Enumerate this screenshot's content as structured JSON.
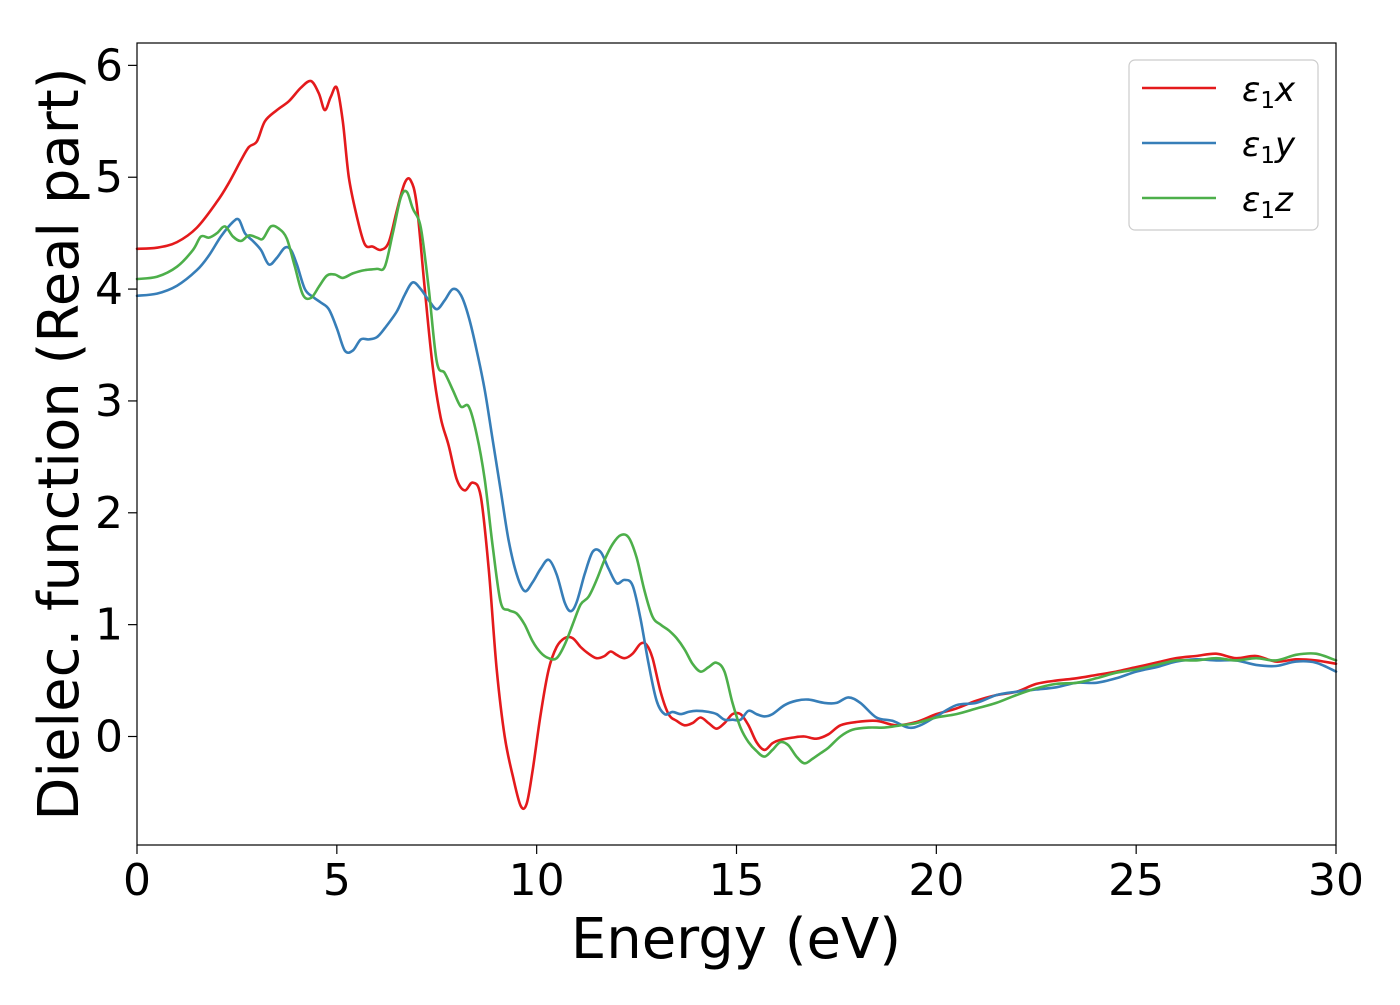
{
  "chart_data": {
    "type": "line",
    "title": "",
    "xlabel": "Energy (eV)",
    "ylabel": "Dielec. function (Real part)",
    "xlim": [
      0,
      30
    ],
    "ylim": [
      -0.97,
      6.2
    ],
    "xticks": [
      0,
      5,
      10,
      15,
      20,
      25,
      30
    ],
    "yticks": [
      0,
      1,
      2,
      3,
      4,
      5,
      6
    ],
    "grid": false,
    "legend_position": "top-right",
    "series": [
      {
        "sym": "ε",
        "sub": "1",
        "comp": "x",
        "color": "#e41a1c",
        "points": [
          [
            0,
            4.36
          ],
          [
            0.5,
            4.37
          ],
          [
            1,
            4.42
          ],
          [
            1.5,
            4.55
          ],
          [
            2,
            4.78
          ],
          [
            2.3,
            4.95
          ],
          [
            2.6,
            5.15
          ],
          [
            2.8,
            5.27
          ],
          [
            3,
            5.32
          ],
          [
            3.2,
            5.5
          ],
          [
            3.5,
            5.6
          ],
          [
            3.8,
            5.68
          ],
          [
            4.1,
            5.8
          ],
          [
            4.35,
            5.86
          ],
          [
            4.55,
            5.75
          ],
          [
            4.7,
            5.6
          ],
          [
            4.85,
            5.72
          ],
          [
            5,
            5.8
          ],
          [
            5.15,
            5.5
          ],
          [
            5.3,
            5.0
          ],
          [
            5.5,
            4.65
          ],
          [
            5.7,
            4.4
          ],
          [
            5.9,
            4.38
          ],
          [
            6.1,
            4.35
          ],
          [
            6.3,
            4.42
          ],
          [
            6.5,
            4.7
          ],
          [
            6.7,
            4.95
          ],
          [
            6.85,
            4.97
          ],
          [
            7,
            4.75
          ],
          [
            7.2,
            4.0
          ],
          [
            7.4,
            3.3
          ],
          [
            7.6,
            2.85
          ],
          [
            7.8,
            2.6
          ],
          [
            8,
            2.3
          ],
          [
            8.2,
            2.2
          ],
          [
            8.4,
            2.27
          ],
          [
            8.6,
            2.15
          ],
          [
            8.8,
            1.5
          ],
          [
            9,
            0.6
          ],
          [
            9.2,
            0.0
          ],
          [
            9.4,
            -0.35
          ],
          [
            9.6,
            -0.62
          ],
          [
            9.75,
            -0.6
          ],
          [
            9.9,
            -0.3
          ],
          [
            10.1,
            0.2
          ],
          [
            10.3,
            0.6
          ],
          [
            10.5,
            0.8
          ],
          [
            10.7,
            0.88
          ],
          [
            10.9,
            0.88
          ],
          [
            11.1,
            0.8
          ],
          [
            11.3,
            0.74
          ],
          [
            11.5,
            0.7
          ],
          [
            11.7,
            0.72
          ],
          [
            11.85,
            0.76
          ],
          [
            12,
            0.73
          ],
          [
            12.2,
            0.7
          ],
          [
            12.4,
            0.74
          ],
          [
            12.6,
            0.83
          ],
          [
            12.75,
            0.82
          ],
          [
            12.9,
            0.7
          ],
          [
            13.1,
            0.4
          ],
          [
            13.3,
            0.2
          ],
          [
            13.5,
            0.14
          ],
          [
            13.7,
            0.1
          ],
          [
            13.9,
            0.12
          ],
          [
            14.1,
            0.17
          ],
          [
            14.3,
            0.12
          ],
          [
            14.5,
            0.07
          ],
          [
            14.7,
            0.12
          ],
          [
            14.9,
            0.2
          ],
          [
            15.1,
            0.2
          ],
          [
            15.3,
            0.1
          ],
          [
            15.5,
            -0.05
          ],
          [
            15.7,
            -0.12
          ],
          [
            15.9,
            -0.06
          ],
          [
            16.1,
            -0.03
          ],
          [
            16.4,
            -0.01
          ],
          [
            16.7,
            0.0
          ],
          [
            17,
            -0.02
          ],
          [
            17.3,
            0.02
          ],
          [
            17.6,
            0.1
          ],
          [
            18,
            0.13
          ],
          [
            18.5,
            0.14
          ],
          [
            19,
            0.1
          ],
          [
            19.5,
            0.13
          ],
          [
            20,
            0.2
          ],
          [
            20.5,
            0.25
          ],
          [
            21,
            0.32
          ],
          [
            21.5,
            0.37
          ],
          [
            22,
            0.4
          ],
          [
            22.5,
            0.47
          ],
          [
            23,
            0.5
          ],
          [
            23.5,
            0.52
          ],
          [
            24,
            0.55
          ],
          [
            24.5,
            0.58
          ],
          [
            25,
            0.62
          ],
          [
            25.5,
            0.66
          ],
          [
            26,
            0.7
          ],
          [
            26.5,
            0.72
          ],
          [
            27,
            0.74
          ],
          [
            27.5,
            0.7
          ],
          [
            28,
            0.72
          ],
          [
            28.5,
            0.67
          ],
          [
            29,
            0.69
          ],
          [
            29.5,
            0.68
          ],
          [
            30,
            0.65
          ]
        ]
      },
      {
        "sym": "ε",
        "sub": "1",
        "comp": "y",
        "color": "#377eb8",
        "points": [
          [
            0,
            3.94
          ],
          [
            0.5,
            3.96
          ],
          [
            1,
            4.03
          ],
          [
            1.5,
            4.17
          ],
          [
            1.8,
            4.3
          ],
          [
            2.1,
            4.47
          ],
          [
            2.4,
            4.6
          ],
          [
            2.55,
            4.62
          ],
          [
            2.7,
            4.5
          ],
          [
            2.9,
            4.43
          ],
          [
            3.1,
            4.35
          ],
          [
            3.3,
            4.22
          ],
          [
            3.5,
            4.28
          ],
          [
            3.7,
            4.37
          ],
          [
            3.85,
            4.35
          ],
          [
            4,
            4.22
          ],
          [
            4.2,
            4.0
          ],
          [
            4.4,
            3.93
          ],
          [
            4.6,
            3.88
          ],
          [
            4.8,
            3.82
          ],
          [
            5,
            3.65
          ],
          [
            5.2,
            3.45
          ],
          [
            5.4,
            3.45
          ],
          [
            5.6,
            3.55
          ],
          [
            5.8,
            3.55
          ],
          [
            6,
            3.57
          ],
          [
            6.2,
            3.65
          ],
          [
            6.5,
            3.8
          ],
          [
            6.7,
            3.95
          ],
          [
            6.9,
            4.06
          ],
          [
            7.1,
            4.0
          ],
          [
            7.3,
            3.9
          ],
          [
            7.5,
            3.82
          ],
          [
            7.7,
            3.9
          ],
          [
            7.9,
            4.0
          ],
          [
            8.1,
            3.95
          ],
          [
            8.3,
            3.75
          ],
          [
            8.5,
            3.45
          ],
          [
            8.7,
            3.1
          ],
          [
            8.9,
            2.65
          ],
          [
            9.1,
            2.2
          ],
          [
            9.3,
            1.75
          ],
          [
            9.5,
            1.45
          ],
          [
            9.7,
            1.3
          ],
          [
            9.9,
            1.38
          ],
          [
            10.1,
            1.5
          ],
          [
            10.3,
            1.58
          ],
          [
            10.5,
            1.45
          ],
          [
            10.7,
            1.2
          ],
          [
            10.85,
            1.12
          ],
          [
            11,
            1.2
          ],
          [
            11.2,
            1.45
          ],
          [
            11.4,
            1.65
          ],
          [
            11.6,
            1.65
          ],
          [
            11.8,
            1.5
          ],
          [
            12,
            1.37
          ],
          [
            12.2,
            1.4
          ],
          [
            12.4,
            1.35
          ],
          [
            12.6,
            1.05
          ],
          [
            12.8,
            0.65
          ],
          [
            13,
            0.32
          ],
          [
            13.2,
            0.2
          ],
          [
            13.4,
            0.22
          ],
          [
            13.6,
            0.2
          ],
          [
            13.8,
            0.22
          ],
          [
            14,
            0.23
          ],
          [
            14.3,
            0.22
          ],
          [
            14.5,
            0.2
          ],
          [
            14.7,
            0.15
          ],
          [
            14.9,
            0.15
          ],
          [
            15.1,
            0.15
          ],
          [
            15.3,
            0.23
          ],
          [
            15.5,
            0.2
          ],
          [
            15.7,
            0.18
          ],
          [
            15.9,
            0.2
          ],
          [
            16.2,
            0.28
          ],
          [
            16.5,
            0.32
          ],
          [
            16.8,
            0.33
          ],
          [
            17.2,
            0.3
          ],
          [
            17.5,
            0.3
          ],
          [
            17.8,
            0.35
          ],
          [
            18.1,
            0.3
          ],
          [
            18.5,
            0.17
          ],
          [
            18.9,
            0.14
          ],
          [
            19.3,
            0.08
          ],
          [
            19.6,
            0.1
          ],
          [
            20,
            0.18
          ],
          [
            20.5,
            0.28
          ],
          [
            21,
            0.3
          ],
          [
            21.5,
            0.37
          ],
          [
            22,
            0.4
          ],
          [
            22.5,
            0.42
          ],
          [
            23,
            0.44
          ],
          [
            23.5,
            0.48
          ],
          [
            24,
            0.48
          ],
          [
            24.5,
            0.52
          ],
          [
            25,
            0.58
          ],
          [
            25.5,
            0.62
          ],
          [
            26,
            0.67
          ],
          [
            26.5,
            0.69
          ],
          [
            27,
            0.68
          ],
          [
            27.5,
            0.68
          ],
          [
            28,
            0.64
          ],
          [
            28.5,
            0.63
          ],
          [
            29,
            0.67
          ],
          [
            29.5,
            0.66
          ],
          [
            30,
            0.58
          ]
        ]
      },
      {
        "sym": "ε",
        "sub": "1",
        "comp": "z",
        "color": "#4daf4a",
        "points": [
          [
            0,
            4.09
          ],
          [
            0.5,
            4.11
          ],
          [
            1,
            4.2
          ],
          [
            1.4,
            4.35
          ],
          [
            1.6,
            4.47
          ],
          [
            1.8,
            4.46
          ],
          [
            2,
            4.5
          ],
          [
            2.2,
            4.56
          ],
          [
            2.4,
            4.47
          ],
          [
            2.6,
            4.43
          ],
          [
            2.8,
            4.48
          ],
          [
            3,
            4.46
          ],
          [
            3.15,
            4.45
          ],
          [
            3.35,
            4.56
          ],
          [
            3.55,
            4.54
          ],
          [
            3.75,
            4.45
          ],
          [
            3.95,
            4.2
          ],
          [
            4.15,
            3.95
          ],
          [
            4.35,
            3.92
          ],
          [
            4.55,
            4.02
          ],
          [
            4.75,
            4.12
          ],
          [
            4.95,
            4.13
          ],
          [
            5.15,
            4.1
          ],
          [
            5.4,
            4.14
          ],
          [
            5.7,
            4.17
          ],
          [
            6,
            4.18
          ],
          [
            6.2,
            4.2
          ],
          [
            6.4,
            4.5
          ],
          [
            6.6,
            4.82
          ],
          [
            6.75,
            4.87
          ],
          [
            6.9,
            4.72
          ],
          [
            7.1,
            4.55
          ],
          [
            7.3,
            4.0
          ],
          [
            7.5,
            3.35
          ],
          [
            7.7,
            3.25
          ],
          [
            7.9,
            3.1
          ],
          [
            8.1,
            2.95
          ],
          [
            8.3,
            2.95
          ],
          [
            8.5,
            2.7
          ],
          [
            8.7,
            2.3
          ],
          [
            8.9,
            1.7
          ],
          [
            9.1,
            1.2
          ],
          [
            9.3,
            1.13
          ],
          [
            9.5,
            1.1
          ],
          [
            9.7,
            1.0
          ],
          [
            9.9,
            0.85
          ],
          [
            10.1,
            0.75
          ],
          [
            10.3,
            0.7
          ],
          [
            10.5,
            0.7
          ],
          [
            10.7,
            0.82
          ],
          [
            10.9,
            1.0
          ],
          [
            11.1,
            1.18
          ],
          [
            11.3,
            1.25
          ],
          [
            11.5,
            1.4
          ],
          [
            11.7,
            1.58
          ],
          [
            11.9,
            1.72
          ],
          [
            12.1,
            1.8
          ],
          [
            12.3,
            1.78
          ],
          [
            12.5,
            1.6
          ],
          [
            12.7,
            1.3
          ],
          [
            12.9,
            1.07
          ],
          [
            13.1,
            1.0
          ],
          [
            13.3,
            0.95
          ],
          [
            13.5,
            0.88
          ],
          [
            13.7,
            0.78
          ],
          [
            13.9,
            0.65
          ],
          [
            14.1,
            0.58
          ],
          [
            14.3,
            0.62
          ],
          [
            14.5,
            0.66
          ],
          [
            14.7,
            0.58
          ],
          [
            14.9,
            0.3
          ],
          [
            15.1,
            0.08
          ],
          [
            15.3,
            -0.05
          ],
          [
            15.5,
            -0.13
          ],
          [
            15.7,
            -0.18
          ],
          [
            15.9,
            -0.12
          ],
          [
            16.1,
            -0.05
          ],
          [
            16.3,
            -0.08
          ],
          [
            16.5,
            -0.18
          ],
          [
            16.7,
            -0.24
          ],
          [
            16.9,
            -0.2
          ],
          [
            17.1,
            -0.15
          ],
          [
            17.3,
            -0.1
          ],
          [
            17.6,
            0.0
          ],
          [
            17.9,
            0.06
          ],
          [
            18.3,
            0.08
          ],
          [
            18.7,
            0.08
          ],
          [
            19.1,
            0.1
          ],
          [
            19.5,
            0.12
          ],
          [
            20,
            0.17
          ],
          [
            20.5,
            0.2
          ],
          [
            21,
            0.25
          ],
          [
            21.5,
            0.3
          ],
          [
            22,
            0.37
          ],
          [
            22.5,
            0.43
          ],
          [
            23,
            0.47
          ],
          [
            23.5,
            0.48
          ],
          [
            24,
            0.52
          ],
          [
            24.5,
            0.57
          ],
          [
            25,
            0.6
          ],
          [
            25.5,
            0.64
          ],
          [
            26,
            0.68
          ],
          [
            26.5,
            0.68
          ],
          [
            27,
            0.7
          ],
          [
            27.5,
            0.68
          ],
          [
            28,
            0.7
          ],
          [
            28.5,
            0.68
          ],
          [
            29,
            0.73
          ],
          [
            29.5,
            0.74
          ],
          [
            30,
            0.68
          ]
        ]
      }
    ]
  }
}
